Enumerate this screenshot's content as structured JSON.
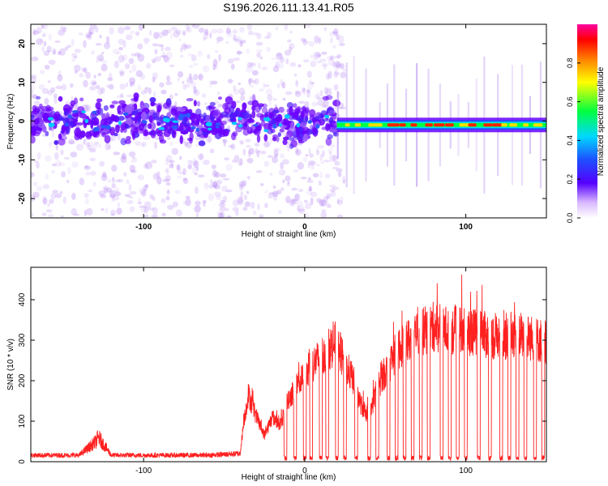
{
  "figure_title": "S196.2026.111.13.41.R05",
  "colors": {
    "snr_line": "#ff2020",
    "spectro_base": "#8a2be2"
  },
  "chart_data": [
    {
      "type": "heatmap",
      "title": "S196.2026.111.13.41.R05",
      "xlabel": "Height of straight line (km)",
      "ylabel": "Frequency (Hz)",
      "xlim": [
        -170,
        150
      ],
      "ylim": [
        -25,
        25
      ],
      "xticks": [
        -100,
        0,
        100
      ],
      "yticks": [
        -20,
        -10,
        0,
        10,
        20
      ],
      "colorbar": {
        "label": "Normalized spectral amplitude",
        "range": [
          0,
          1
        ],
        "ticks": [
          0.0,
          0.2,
          0.4,
          0.6,
          0.8
        ]
      },
      "description_bands": [
        {
          "name": "noise region",
          "x_range": [
            -170,
            20
          ],
          "freq_spread_hz": 25
        },
        {
          "name": "signal line",
          "x_range": [
            20,
            150
          ],
          "center_freq_hz": -1,
          "peak_amplitude": 1.0
        }
      ]
    },
    {
      "type": "line",
      "xlabel": "Height of straight line (km)",
      "ylabel": "SNR (10 * v/v)",
      "xlim": [
        -170,
        150
      ],
      "ylim": [
        0,
        480
      ],
      "xticks": [
        -100,
        0,
        100
      ],
      "yticks": [
        0,
        100,
        200,
        300,
        400
      ],
      "series": [
        {
          "name": "SNR",
          "envelope_x": [
            -170,
            -140,
            -130,
            -128,
            -120,
            -100,
            -60,
            -40,
            -38,
            -35,
            -30,
            -25,
            -20,
            -15,
            -10,
            -5,
            0,
            5,
            10,
            20,
            25,
            30,
            35,
            40,
            45,
            50,
            55,
            60,
            70,
            80,
            90,
            100,
            110,
            120,
            130,
            140,
            150
          ],
          "envelope_y": [
            20,
            20,
            60,
            75,
            20,
            20,
            20,
            25,
            100,
            180,
            120,
            70,
            120,
            100,
            170,
            200,
            230,
            260,
            280,
            320,
            260,
            220,
            150,
            120,
            200,
            240,
            280,
            310,
            340,
            360,
            350,
            350,
            340,
            330,
            340,
            330,
            320
          ],
          "dips_x": [
            -12,
            -6,
            0,
            4,
            10,
            14,
            20,
            25,
            32,
            40,
            45,
            52,
            57,
            62,
            67,
            72,
            77,
            85,
            90,
            95,
            100,
            108,
            115,
            122,
            127,
            132,
            137,
            143,
            148
          ]
        }
      ]
    }
  ]
}
